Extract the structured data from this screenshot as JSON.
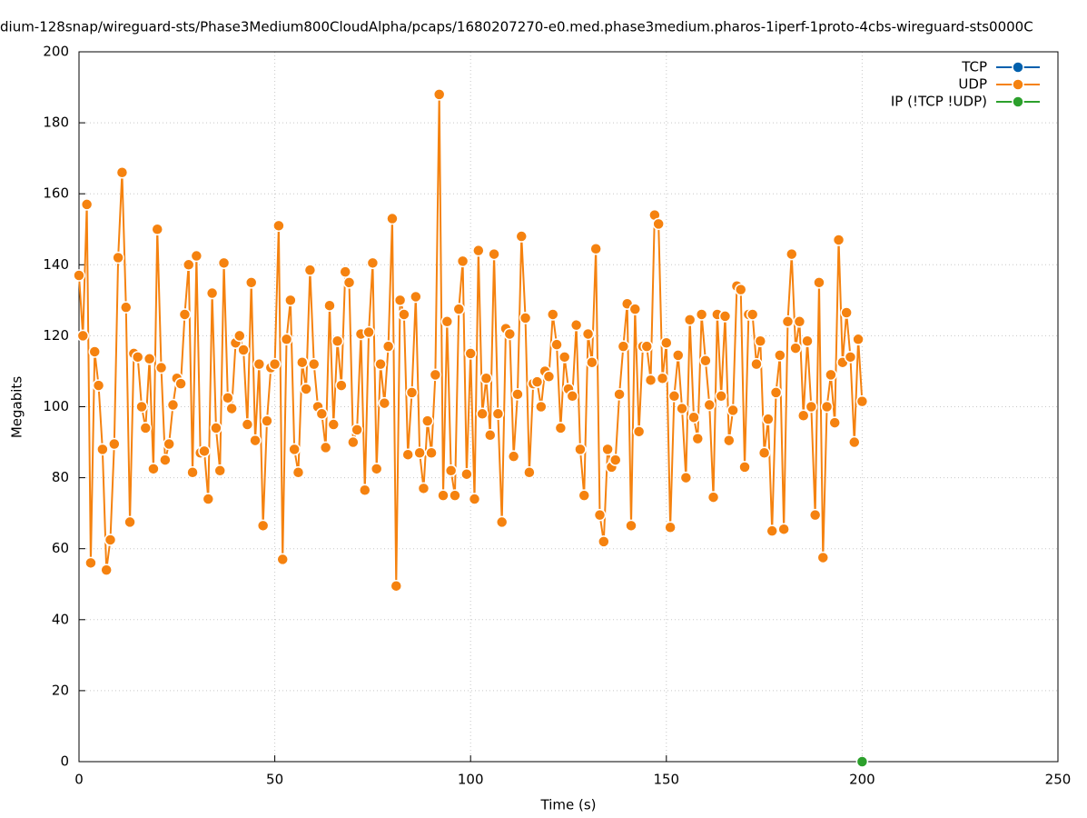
{
  "chart_data": {
    "type": "line",
    "title": "dium-128snap/wireguard-sts/Phase3Medium800CloudAlpha/pcaps/1680207270-e0.med.phase3medium.pharos-1iperf-1proto-4cbs-wireguard-sts0000C",
    "x_label": "Time (s)",
    "y_label": "Megabits",
    "xlim": [
      0,
      250
    ],
    "xticks": [
      0,
      50,
      100,
      150,
      200,
      250
    ],
    "ylim": [
      0,
      200
    ],
    "yticks": [
      0,
      20,
      40,
      60,
      80,
      100,
      120,
      140,
      160,
      180,
      200
    ],
    "grid": true,
    "legend": "top-right",
    "series": [
      {
        "name": "TCP",
        "color": "#0060ad",
        "x": [],
        "values": []
      },
      {
        "name": "UDP",
        "color": "#f5820f",
        "x": [
          0,
          1,
          2,
          3,
          4,
          5,
          6,
          7,
          8,
          9,
          10,
          11,
          12,
          13,
          14,
          15,
          16,
          17,
          18,
          19,
          20,
          21,
          22,
          23,
          24,
          25,
          26,
          27,
          28,
          29,
          30,
          31,
          32,
          33,
          34,
          35,
          36,
          37,
          38,
          39,
          40,
          41,
          42,
          43,
          44,
          45,
          46,
          47,
          48,
          49,
          50,
          51,
          52,
          53,
          54,
          55,
          56,
          57,
          58,
          59,
          60,
          61,
          62,
          63,
          64,
          65,
          66,
          67,
          68,
          69,
          70,
          71,
          72,
          73,
          74,
          75,
          76,
          77,
          78,
          79,
          80,
          81,
          82,
          83,
          84,
          85,
          86,
          87,
          88,
          89,
          90,
          91,
          92,
          93,
          94,
          95,
          96,
          97,
          98,
          99,
          100,
          101,
          102,
          103,
          104,
          105,
          106,
          107,
          108,
          109,
          110,
          111,
          112,
          113,
          114,
          115,
          116,
          117,
          118,
          119,
          120,
          121,
          122,
          123,
          124,
          125,
          126,
          127,
          128,
          129,
          130,
          131,
          132,
          133,
          134,
          135,
          136,
          137,
          138,
          139,
          140,
          141,
          142,
          143,
          144,
          145,
          146,
          147,
          148,
          149,
          150,
          151,
          152,
          153,
          154,
          155,
          156,
          157,
          158,
          159,
          160,
          161,
          162,
          163,
          164,
          165,
          166,
          167,
          168,
          169,
          170,
          171,
          172,
          173,
          174,
          175,
          176,
          177,
          178,
          179,
          180,
          181,
          182,
          183,
          184,
          185,
          186,
          187,
          188,
          189,
          190,
          191,
          192,
          193,
          194,
          195,
          196,
          197,
          198,
          199,
          200
        ],
        "values": [
          137,
          120,
          157,
          56,
          115.5,
          106,
          88,
          54,
          62.5,
          89.5,
          142,
          166,
          128,
          67.5,
          115,
          114,
          100,
          94,
          113.5,
          82.5,
          150,
          111,
          85,
          89.5,
          100.5,
          108,
          106.5,
          126,
          140,
          81.5,
          142.5,
          87,
          87.5,
          74,
          132,
          94,
          82,
          140.5,
          102.5,
          99.5,
          118,
          120,
          116,
          95,
          135,
          90.5,
          112,
          66.5,
          96,
          111,
          112,
          151,
          57,
          119,
          130,
          88,
          81.5,
          112.5,
          105,
          138.5,
          112,
          100,
          98,
          88.5,
          128.5,
          95,
          118.5,
          106,
          138,
          135,
          90,
          93.5,
          120.5,
          76.5,
          121,
          140.5,
          82.5,
          112,
          101,
          117,
          153,
          49.5,
          130,
          126,
          86.5,
          104,
          131,
          87,
          77,
          96,
          87,
          109,
          188,
          75,
          124,
          82,
          75,
          127.5,
          141,
          81,
          115,
          74,
          144,
          98,
          108,
          92,
          143,
          98,
          67.5,
          122,
          120.5,
          86,
          103.5,
          148,
          125,
          81.5,
          106.5,
          107,
          100,
          110,
          108.5,
          126,
          117.5,
          94,
          114,
          105,
          103,
          123,
          88,
          75,
          120.5,
          112.5,
          144.5,
          69.5,
          62,
          88,
          83,
          85,
          103.5,
          117,
          129,
          66.5,
          127.5,
          93,
          117,
          117,
          107.5,
          154,
          151.5,
          108,
          118,
          66,
          103,
          114.5,
          99.5,
          80,
          124.5,
          97,
          91,
          126,
          113,
          100.5,
          74.5,
          126,
          103,
          125.5,
          90.5,
          99,
          134,
          133,
          83,
          126,
          126,
          112,
          118.5,
          87,
          96.5,
          65,
          104,
          114.5,
          65.5,
          124,
          143,
          116.5,
          124,
          97.5,
          118.5,
          100,
          69.5,
          135,
          57.5,
          100,
          109,
          95.5,
          147,
          112.5,
          126.5,
          114,
          90,
          119,
          101.5
        ]
      },
      {
        "name": "IP (!TCP  !UDP)",
        "color": "#2ca02c",
        "x": [
          200
        ],
        "values": [
          0
        ]
      }
    ]
  }
}
